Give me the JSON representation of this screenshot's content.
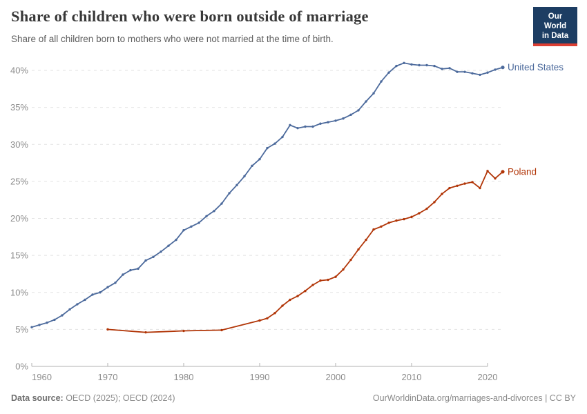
{
  "header": {
    "title": "Share of children who were born outside of marriage",
    "subtitle": "Share of all children born to mothers who were not married at the time of birth."
  },
  "logo": {
    "line1": "Our World",
    "line2": "in Data",
    "bg_color": "#1d3d63",
    "accent_color": "#dc3e32"
  },
  "footer": {
    "source_label": "Data source:",
    "source_text": " OECD (2025); OECD (2024)",
    "credit": "OurWorldinData.org/marriages-and-divorces | CC BY"
  },
  "chart_data": {
    "type": "line",
    "title": "Share of children who were born outside of marriage",
    "subtitle": "Share of all children born to mothers who were not married at the time of birth.",
    "xlabel": "",
    "ylabel": "",
    "unit": "%",
    "grid": "horizontal-dashed",
    "legend_position": "end-of-line-labels",
    "x_axis": {
      "range": [
        1960,
        2022
      ],
      "ticks": [
        1960,
        1970,
        1980,
        1990,
        2000,
        2010,
        2020
      ]
    },
    "y_axis": {
      "range": [
        0,
        41.5
      ],
      "ticks": [
        0,
        5,
        10,
        15,
        20,
        25,
        30,
        35,
        40
      ]
    },
    "axis_color": "#b0b0b0",
    "gridline_color": "#e2e2e2",
    "tick_label_color": "#8c8c8c",
    "series": [
      {
        "name": "United States",
        "color": "#4C6A9C",
        "points": [
          [
            1960,
            5.3
          ],
          [
            1961,
            5.6
          ],
          [
            1962,
            5.9
          ],
          [
            1963,
            6.3
          ],
          [
            1964,
            6.9
          ],
          [
            1965,
            7.7
          ],
          [
            1966,
            8.4
          ],
          [
            1967,
            9.0
          ],
          [
            1968,
            9.7
          ],
          [
            1969,
            10.0
          ],
          [
            1970,
            10.7
          ],
          [
            1971,
            11.3
          ],
          [
            1972,
            12.4
          ],
          [
            1973,
            13.0
          ],
          [
            1974,
            13.2
          ],
          [
            1975,
            14.3
          ],
          [
            1976,
            14.8
          ],
          [
            1977,
            15.5
          ],
          [
            1978,
            16.3
          ],
          [
            1979,
            17.1
          ],
          [
            1980,
            18.4
          ],
          [
            1981,
            18.9
          ],
          [
            1982,
            19.4
          ],
          [
            1983,
            20.3
          ],
          [
            1984,
            21.0
          ],
          [
            1985,
            22.0
          ],
          [
            1986,
            23.4
          ],
          [
            1987,
            24.5
          ],
          [
            1988,
            25.7
          ],
          [
            1989,
            27.1
          ],
          [
            1990,
            28.0
          ],
          [
            1991,
            29.5
          ],
          [
            1992,
            30.1
          ],
          [
            1993,
            31.0
          ],
          [
            1994,
            32.6
          ],
          [
            1995,
            32.2
          ],
          [
            1996,
            32.4
          ],
          [
            1997,
            32.4
          ],
          [
            1998,
            32.8
          ],
          [
            1999,
            33.0
          ],
          [
            2000,
            33.2
          ],
          [
            2001,
            33.5
          ],
          [
            2002,
            34.0
          ],
          [
            2003,
            34.6
          ],
          [
            2004,
            35.8
          ],
          [
            2005,
            36.9
          ],
          [
            2006,
            38.5
          ],
          [
            2007,
            39.7
          ],
          [
            2008,
            40.6
          ],
          [
            2009,
            41.0
          ],
          [
            2010,
            40.8
          ],
          [
            2011,
            40.7
          ],
          [
            2012,
            40.7
          ],
          [
            2013,
            40.6
          ],
          [
            2014,
            40.2
          ],
          [
            2015,
            40.3
          ],
          [
            2016,
            39.8
          ],
          [
            2017,
            39.8
          ],
          [
            2018,
            39.6
          ],
          [
            2019,
            39.4
          ],
          [
            2020,
            39.7
          ],
          [
            2021,
            40.1
          ],
          [
            2022,
            40.4
          ]
        ]
      },
      {
        "name": "Poland",
        "color": "#B13507",
        "points": [
          [
            1970,
            5.0
          ],
          [
            1975,
            4.6
          ],
          [
            1980,
            4.8
          ],
          [
            1985,
            4.9
          ],
          [
            1990,
            6.2
          ],
          [
            1991,
            6.5
          ],
          [
            1992,
            7.2
          ],
          [
            1993,
            8.2
          ],
          [
            1994,
            9.0
          ],
          [
            1995,
            9.5
          ],
          [
            1996,
            10.2
          ],
          [
            1997,
            11.0
          ],
          [
            1998,
            11.6
          ],
          [
            1999,
            11.7
          ],
          [
            2000,
            12.1
          ],
          [
            2001,
            13.1
          ],
          [
            2002,
            14.4
          ],
          [
            2003,
            15.8
          ],
          [
            2004,
            17.1
          ],
          [
            2005,
            18.5
          ],
          [
            2006,
            18.9
          ],
          [
            2007,
            19.4
          ],
          [
            2008,
            19.7
          ],
          [
            2009,
            19.9
          ],
          [
            2010,
            20.2
          ],
          [
            2011,
            20.7
          ],
          [
            2012,
            21.3
          ],
          [
            2013,
            22.2
          ],
          [
            2014,
            23.3
          ],
          [
            2015,
            24.1
          ],
          [
            2016,
            24.4
          ],
          [
            2017,
            24.7
          ],
          [
            2018,
            24.9
          ],
          [
            2019,
            24.1
          ],
          [
            2020,
            26.4
          ],
          [
            2021,
            25.4
          ],
          [
            2022,
            26.3
          ]
        ]
      }
    ]
  }
}
